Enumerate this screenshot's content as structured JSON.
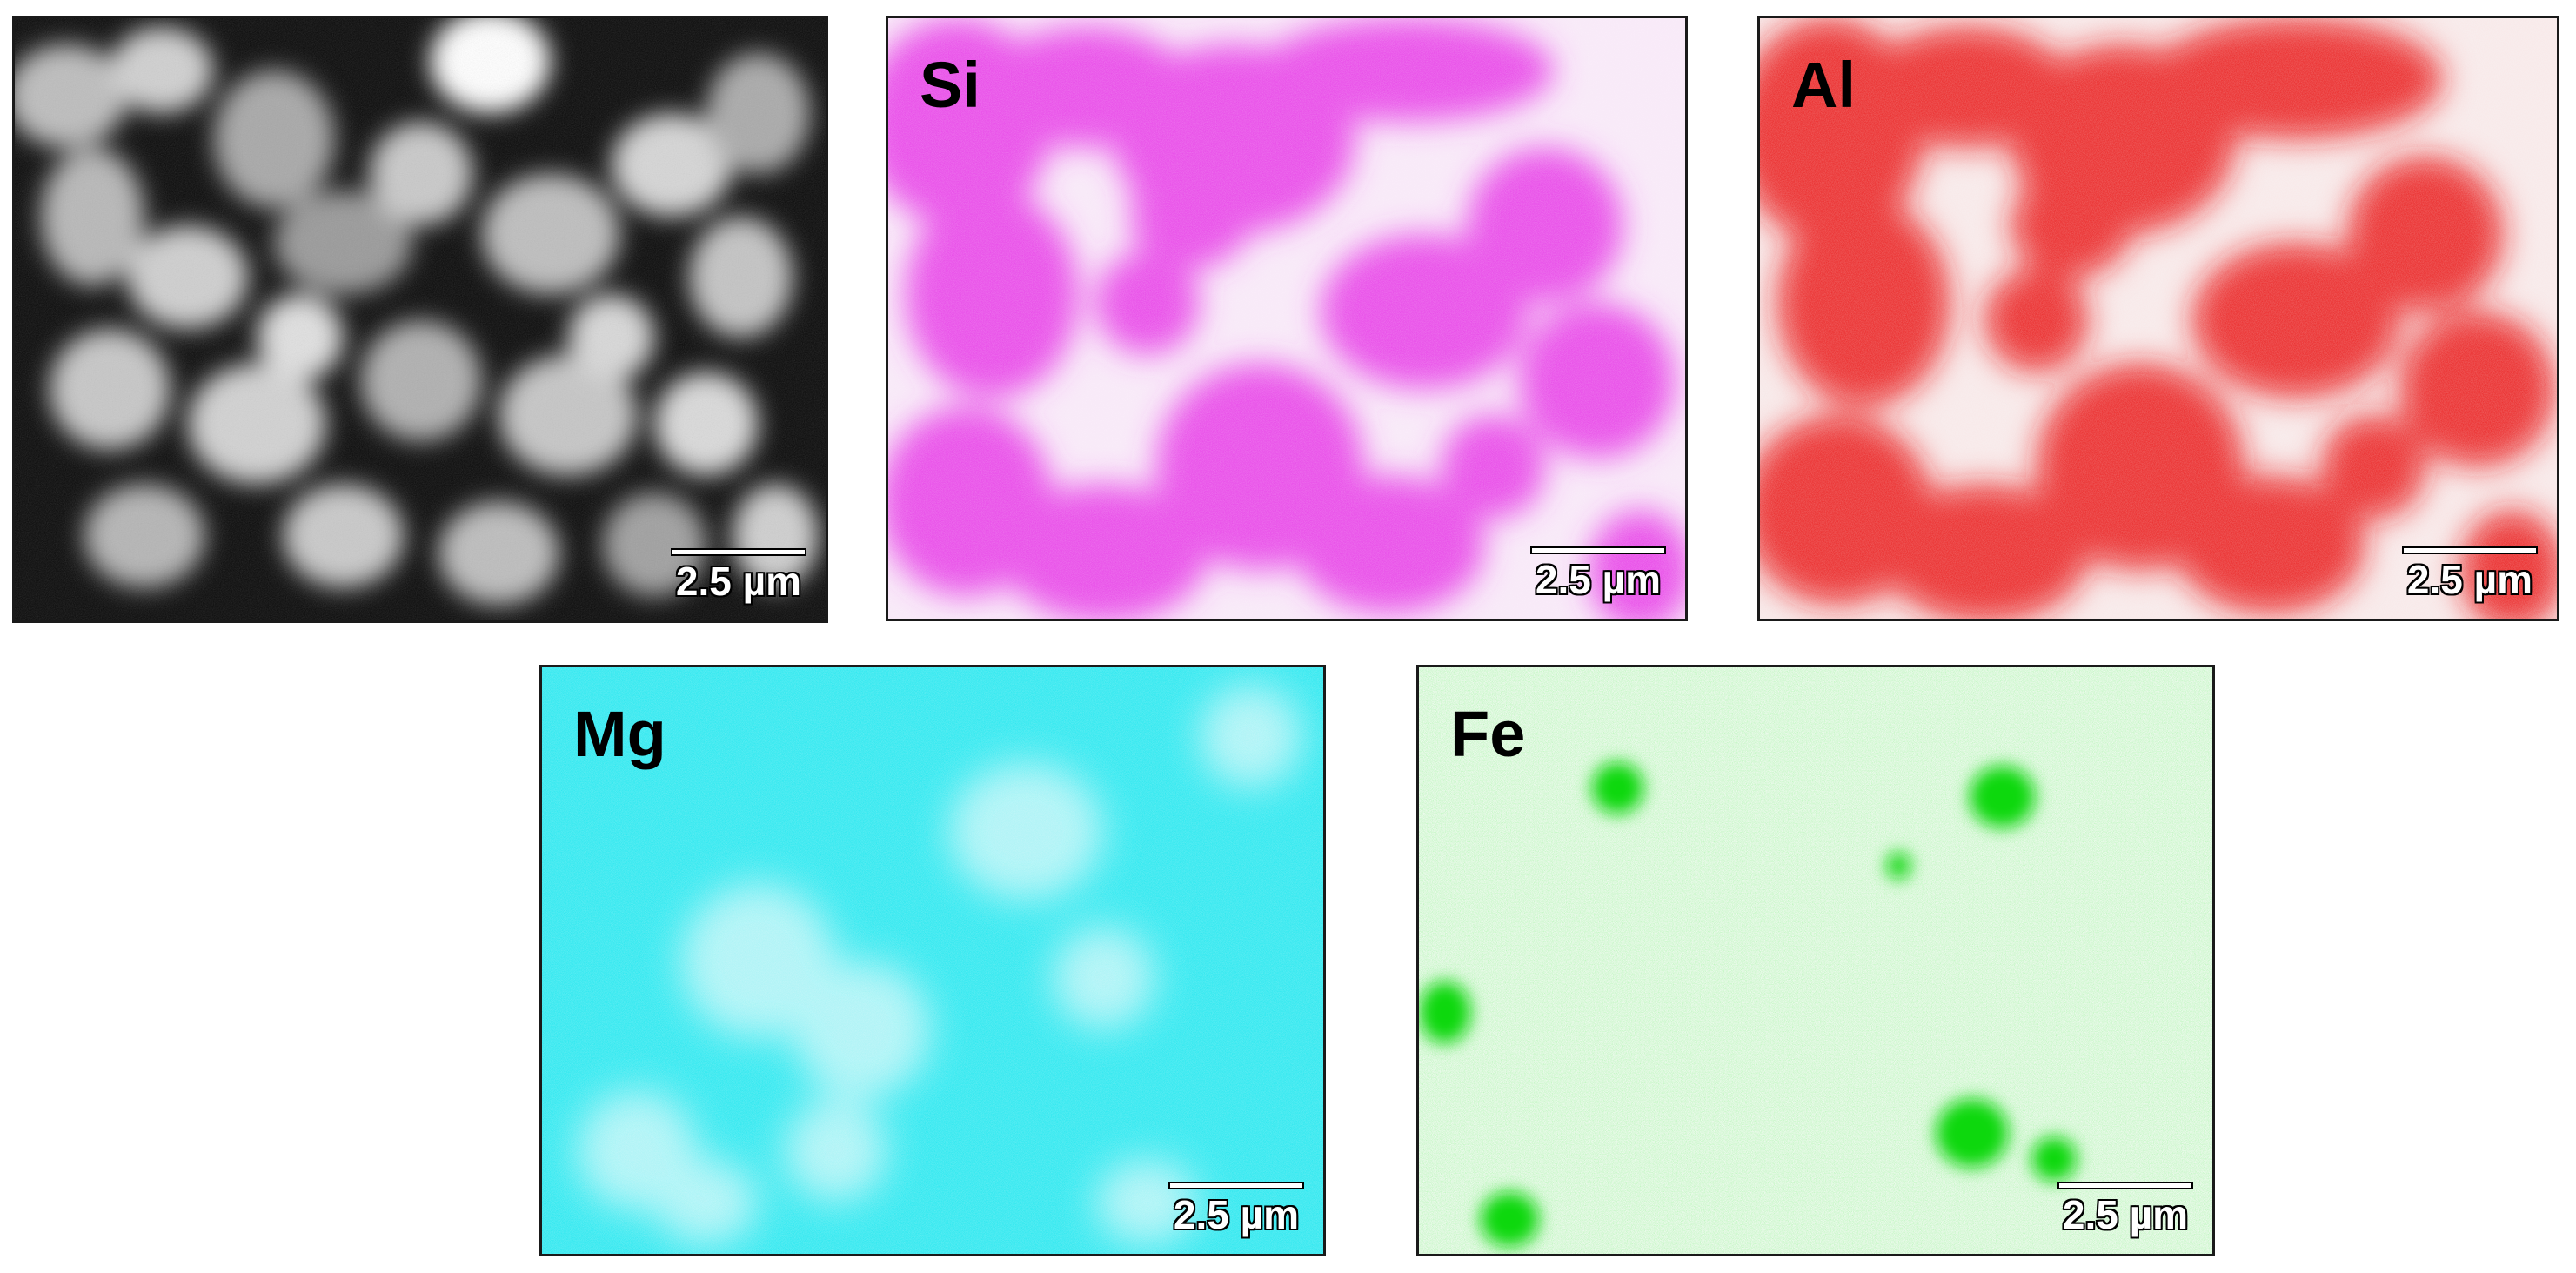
{
  "figure": {
    "panels": [
      {
        "id": "sem",
        "label": "",
        "scalebar": "2.5 µm",
        "base_color": "#000000",
        "blob_color": "#c8c8c8"
      },
      {
        "id": "si",
        "label": "Si",
        "scalebar": "2.5 µm",
        "base_color": "#f7e6f7",
        "blob_color": "#e63be6"
      },
      {
        "id": "al",
        "label": "Al",
        "scalebar": "2.5 µm",
        "base_color": "#f6e6e6",
        "blob_color": "#e81818"
      },
      {
        "id": "mg",
        "label": "Mg",
        "scalebar": "2.5 µm",
        "base_color": "#1fe6ee",
        "blob_color": "#e6fbfb"
      },
      {
        "id": "fe",
        "label": "Fe",
        "scalebar": "2.5 µm",
        "base_color": "#ecfaec",
        "blob_color": "#18d818"
      }
    ]
  }
}
